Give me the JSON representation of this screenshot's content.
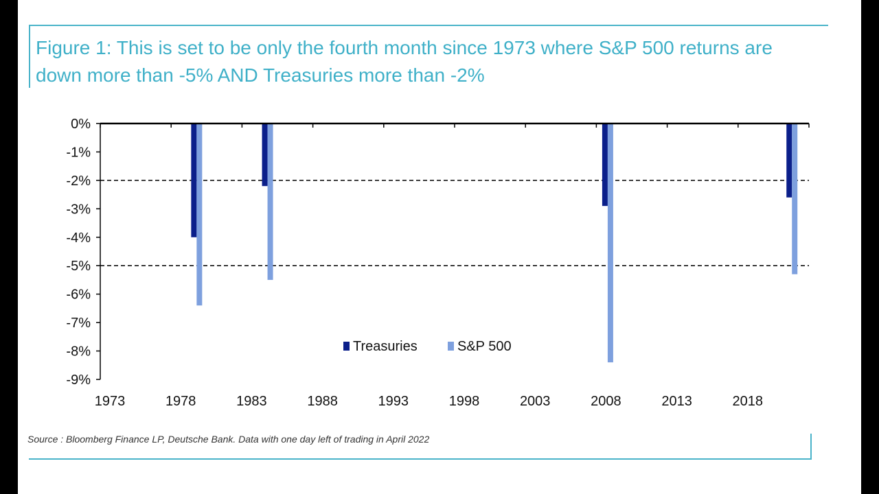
{
  "title": "Figure 1: This is set to be only the fourth month since 1973 where S&P 500 returns are down more than -5% AND Treasuries more than -2%",
  "source": "Source : Bloomberg Finance LP, Deutsche Bank. Data with one day left of trading in April 2022",
  "chart_data": {
    "type": "bar",
    "title": "Figure 1: This is set to be only the fourth month since 1973 where S&P 500 returns are down more than -5% AND Treasuries more than -2%",
    "xlabel": "",
    "ylabel": "",
    "xlim": [
      1973,
      2023
    ],
    "ylim": [
      -9,
      0
    ],
    "yticks": [
      0,
      -1,
      -2,
      -3,
      -4,
      -5,
      -6,
      -7,
      -8,
      -9
    ],
    "ytick_labels": [
      "0%",
      "-1%",
      "-2%",
      "-3%",
      "-4%",
      "-5%",
      "-6%",
      "-7%",
      "-8%",
      "-9%"
    ],
    "xticks": [
      1973,
      1978,
      1983,
      1988,
      1993,
      1998,
      2003,
      2008,
      2013,
      2018
    ],
    "xtick_labels": [
      "1973",
      "1978",
      "1983",
      "1988",
      "1993",
      "1998",
      "2003",
      "2008",
      "2013",
      "2018"
    ],
    "reference_lines": [
      -2,
      -5
    ],
    "legend": [
      "Treasuries",
      "S&P 500"
    ],
    "legend_position": "bottom-center",
    "x": [
      1979.8,
      1984.8,
      2008.8,
      2021.8
    ],
    "series": [
      {
        "name": "Treasuries",
        "color": "#0b1f8a",
        "values": [
          -4.0,
          -2.2,
          -2.9,
          -2.6
        ]
      },
      {
        "name": "S&P 500",
        "color": "#7ea0de",
        "values": [
          -6.4,
          -5.5,
          -8.4,
          -5.3
        ]
      }
    ]
  }
}
